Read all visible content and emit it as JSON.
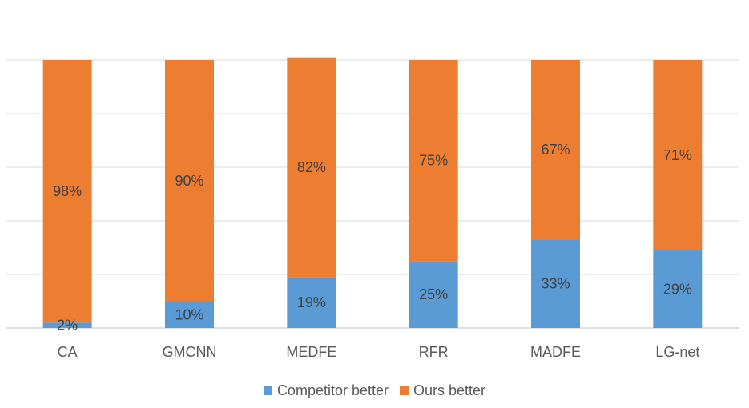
{
  "chart_data": {
    "type": "bar",
    "stacked": true,
    "percent_stacked": true,
    "categories": [
      "CA",
      "GMCNN",
      "MEDFE",
      "RFR",
      "MADFE",
      "LG-net"
    ],
    "series": [
      {
        "name": "Competitor better",
        "color": "#5b9bd5",
        "values": [
          2,
          10,
          19,
          25,
          33,
          29
        ],
        "labels": [
          "2%",
          "10%",
          "19%",
          "25%",
          "33%",
          "29%"
        ]
      },
      {
        "name": "Ours better",
        "color": "#ed7d31",
        "values": [
          98,
          90,
          82,
          75,
          67,
          71
        ],
        "labels": [
          "98%",
          "90%",
          "82%",
          "75%",
          "67%",
          "71%"
        ]
      }
    ],
    "ylim": [
      0,
      100
    ],
    "grid": true,
    "legend_position": "bottom"
  }
}
